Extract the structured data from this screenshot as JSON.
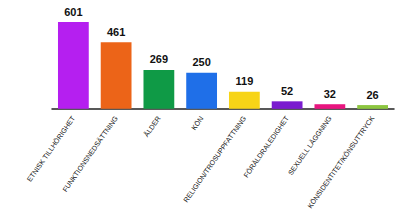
{
  "chart_data": {
    "type": "bar",
    "categories": [
      "ETNISK TILLHÖRIGHET",
      "FUNKTIONSNEDSÄTTNING",
      "ÅLDER",
      "KÖN",
      "RELIGION/TROSUPPFATTNING",
      "FÖRÄLDRALEDIGHET",
      "SEXUELL LÄGGNING",
      "KÖNSIDENTITET/KÖNSUTTRYCK"
    ],
    "values": [
      601,
      461,
      269,
      250,
      119,
      52,
      32,
      26
    ],
    "colors": [
      "#b51ff0",
      "#ec6418",
      "#0f9a46",
      "#1f6fe8",
      "#f7d417",
      "#7a1ccf",
      "#e8157f",
      "#8cc63f"
    ],
    "ylim": [
      0,
      601
    ],
    "grid": false,
    "data_labels": true,
    "tick_labels": "x"
  }
}
